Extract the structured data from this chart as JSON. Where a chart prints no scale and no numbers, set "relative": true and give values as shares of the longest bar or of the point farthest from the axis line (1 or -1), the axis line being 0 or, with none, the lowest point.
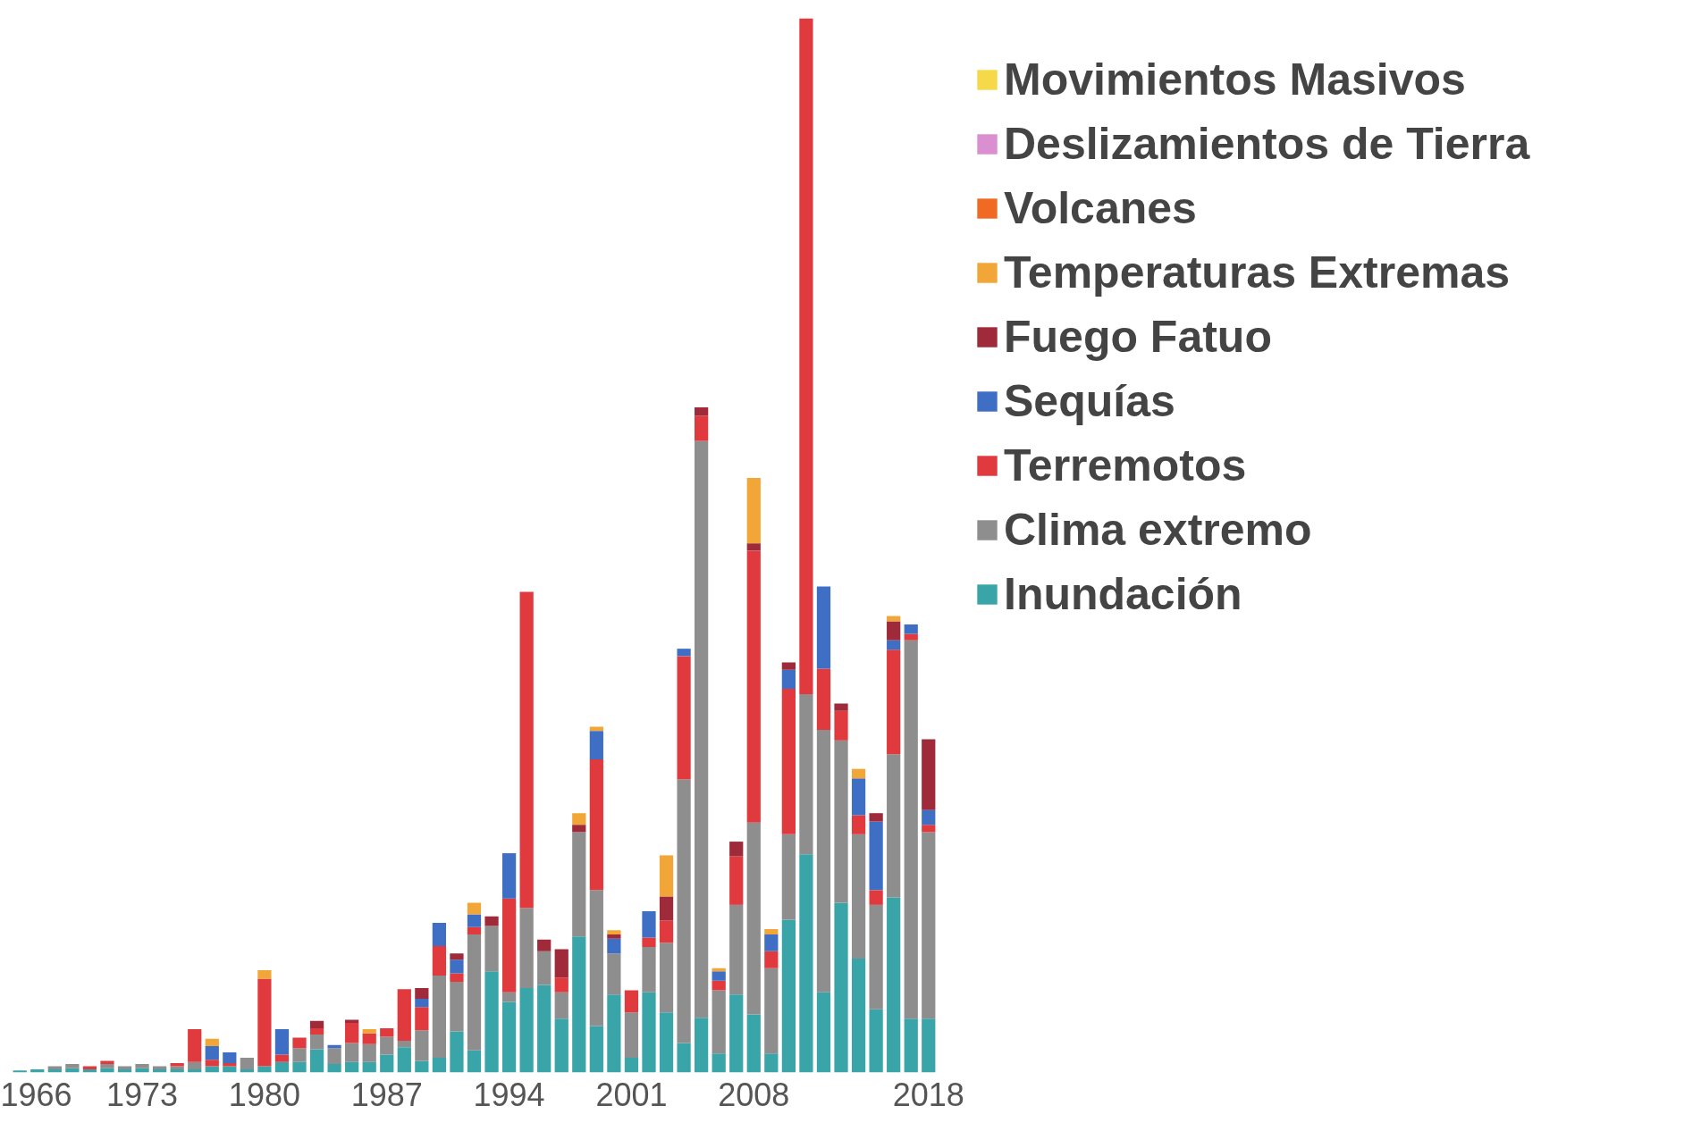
{
  "chart_data": {
    "type": "bar",
    "stacked": true,
    "relative": true,
    "legend": "right",
    "categories": [
      "1966",
      null,
      null,
      null,
      null,
      null,
      null,
      "1973",
      null,
      null,
      null,
      null,
      null,
      null,
      "1980",
      null,
      null,
      null,
      null,
      null,
      null,
      "1987",
      null,
      null,
      null,
      null,
      null,
      null,
      "1994",
      null,
      null,
      null,
      null,
      null,
      null,
      "2001",
      null,
      null,
      null,
      null,
      null,
      null,
      "2008",
      null,
      null,
      null,
      null,
      null,
      null,
      null,
      null,
      null,
      "2018"
    ],
    "series": [
      {
        "name": "Inundación",
        "color": "#3aa5a8",
        "values": [
          0.002,
          0.003,
          0.003,
          0.004,
          0.003,
          0.004,
          0.003,
          0.004,
          0.003,
          0.003,
          0.003,
          0.006,
          0.006,
          0.003,
          0.006,
          0.01,
          0.01,
          0.022,
          0.008,
          0.01,
          0.01,
          0.017,
          0.024,
          0.011,
          0.014,
          0.039,
          0.021,
          0.096,
          0.067,
          0.08,
          0.083,
          0.051,
          0.129,
          0.044,
          0.074,
          0.014,
          0.076,
          0.057,
          0.028,
          0.052,
          0.018,
          0.074,
          0.055,
          0.018,
          0.145,
          0.207,
          0.076,
          0.161,
          0.108,
          0.06,
          0.166,
          0.051,
          0.051
        ]
      },
      {
        "name": "Clima extremo",
        "color": "#8e8e8e",
        "values": [
          0,
          0,
          0.003,
          0.004,
          0,
          0.004,
          0.003,
          0.004,
          0.003,
          0.003,
          0.007,
          0,
          0,
          0.011,
          0,
          0,
          0.013,
          0.014,
          0.015,
          0.018,
          0.017,
          0.017,
          0.006,
          0.029,
          0.078,
          0.047,
          0.11,
          0.043,
          0.009,
          0.076,
          0.032,
          0.025,
          0.099,
          0.129,
          0.039,
          0.043,
          0.043,
          0.066,
          0.25,
          0.547,
          0.06,
          0.085,
          0.182,
          0.081,
          0.081,
          0.152,
          0.249,
          0.154,
          0.118,
          0.099,
          0.136,
          0.359,
          0.177
        ]
      },
      {
        "name": "Terremotos",
        "color": "#e03a3e",
        "values": [
          0,
          0,
          0,
          0,
          0.003,
          0.003,
          0,
          0,
          0,
          0.003,
          0.031,
          0.006,
          0.003,
          0,
          0.083,
          0.007,
          0.01,
          0.006,
          0,
          0.019,
          0.01,
          0.008,
          0.049,
          0.022,
          0.028,
          0.008,
          0.007,
          0,
          0.089,
          0.3,
          0,
          0.014,
          0,
          0.124,
          0,
          0.021,
          0.009,
          0.021,
          0.117,
          0.024,
          0.009,
          0.046,
          0.258,
          0.016,
          0.138,
          0.641,
          0.058,
          0.028,
          0.018,
          0.014,
          0.099,
          0.006,
          0.007
        ]
      },
      {
        "name": "Sequías",
        "color": "#3e6fc4",
        "values": [
          0,
          0,
          0,
          0,
          0,
          0,
          0,
          0,
          0,
          0,
          0,
          0.013,
          0.01,
          0,
          0,
          0.024,
          0,
          0,
          0.003,
          0,
          0,
          0,
          0,
          0.008,
          0.022,
          0.013,
          0.012,
          0,
          0.043,
          0,
          0,
          0,
          0,
          0.027,
          0.014,
          0,
          0.025,
          0,
          0.007,
          0,
          0.009,
          0,
          0,
          0.016,
          0.018,
          0,
          0.078,
          0,
          0.035,
          0.065,
          0.009,
          0.009,
          0.014
        ]
      },
      {
        "name": "Fuego Fatuo",
        "color": "#9e2a3a",
        "values": [
          0,
          0,
          0,
          0,
          0,
          0,
          0,
          0,
          0,
          0,
          0,
          0,
          0,
          0,
          0,
          0,
          0,
          0.007,
          0,
          0.003,
          0,
          0,
          0,
          0.01,
          0,
          0.006,
          0,
          0.009,
          0,
          0,
          0.011,
          0.027,
          0.007,
          0,
          0.004,
          0,
          0,
          0.023,
          0,
          0.008,
          0,
          0.014,
          0.007,
          0,
          0.007,
          0,
          0,
          0.007,
          0,
          0.008,
          0.018,
          0,
          0.067
        ]
      },
      {
        "name": "Temperaturas Extremas",
        "color": "#f2a638",
        "values": [
          0,
          0,
          0,
          0,
          0,
          0,
          0,
          0,
          0,
          0,
          0,
          0.007,
          0,
          0,
          0.008,
          0,
          0,
          0,
          0,
          0,
          0.004,
          0,
          0,
          0,
          0,
          0,
          0.011,
          0,
          0,
          0,
          0,
          0,
          0.011,
          0.004,
          0.004,
          0,
          0,
          0.039,
          0,
          0,
          0.003,
          0,
          0.062,
          0.005,
          0,
          0,
          0,
          0,
          0.009,
          0,
          0.005,
          0,
          0
        ]
      },
      {
        "name": "Volcanes",
        "color": "#f06a24",
        "values": [
          0,
          0,
          0,
          0,
          0,
          0,
          0,
          0,
          0,
          0,
          0,
          0,
          0,
          0,
          0,
          0,
          0,
          0,
          0,
          0,
          0,
          0,
          0,
          0,
          0,
          0,
          0,
          0,
          0,
          0,
          0,
          0,
          0,
          0,
          0,
          0,
          0,
          0,
          0,
          0,
          0,
          0,
          0,
          0,
          0,
          0,
          0,
          0,
          0,
          0,
          0,
          0,
          0
        ]
      },
      {
        "name": "Deslizamientos de Tierra",
        "color": "#d98fd0",
        "values": [
          0,
          0,
          0,
          0,
          0,
          0,
          0,
          0,
          0,
          0,
          0,
          0,
          0,
          0,
          0,
          0,
          0,
          0,
          0,
          0,
          0,
          0,
          0,
          0,
          0,
          0,
          0,
          0,
          0,
          0,
          0,
          0,
          0,
          0,
          0,
          0,
          0,
          0,
          0,
          0,
          0,
          0,
          0,
          0,
          0,
          0,
          0,
          0,
          0,
          0,
          0,
          0,
          0
        ]
      },
      {
        "name": "Movimientos Masivos",
        "color": "#f5d949",
        "values": [
          0,
          0,
          0,
          0,
          0,
          0,
          0,
          0,
          0,
          0,
          0,
          0,
          0,
          0,
          0,
          0,
          0,
          0,
          0,
          0,
          0,
          0,
          0,
          0,
          0,
          0,
          0,
          0,
          0,
          0,
          0,
          0,
          0,
          0,
          0,
          0,
          0,
          0,
          0,
          0,
          0,
          0,
          0,
          0,
          0,
          0,
          0,
          0,
          0,
          0,
          0,
          0,
          0
        ]
      }
    ]
  }
}
